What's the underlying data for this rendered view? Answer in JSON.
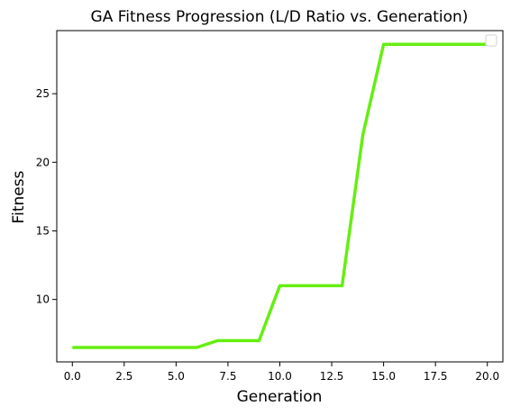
{
  "chart_data": {
    "type": "line",
    "title": "GA Fitness Progression (L/D Ratio vs. Generation)",
    "xlabel": "Generation",
    "ylabel": "Fitness",
    "xlim": [
      -0.75,
      20.75
    ],
    "ylim": [
      5.45,
      29.6
    ],
    "xticks": [
      0,
      2.5,
      5,
      7.5,
      10,
      12.5,
      15,
      17.5,
      20
    ],
    "xtick_labels": [
      "0.0",
      "2.5",
      "5.0",
      "7.5",
      "10.0",
      "12.5",
      "15.0",
      "17.5",
      "20.0"
    ],
    "yticks": [
      10,
      15,
      20,
      25
    ],
    "ytick_labels": [
      "10",
      "15",
      "20",
      "25"
    ],
    "grid": false,
    "legend": {
      "placement": "top-right",
      "entries": []
    },
    "series": [
      {
        "color": "#66ee11",
        "x": [
          0,
          1,
          2,
          3,
          4,
          5,
          6,
          7,
          8,
          9,
          10,
          11,
          12,
          13,
          14,
          15,
          16,
          17,
          18,
          19,
          20
        ],
        "y": [
          6.5,
          6.5,
          6.5,
          6.5,
          6.5,
          6.5,
          6.5,
          7.0,
          7.0,
          7.0,
          11.0,
          11.0,
          11.0,
          11.0,
          22.0,
          28.6,
          28.6,
          28.6,
          28.6,
          28.6,
          28.6
        ]
      }
    ]
  }
}
